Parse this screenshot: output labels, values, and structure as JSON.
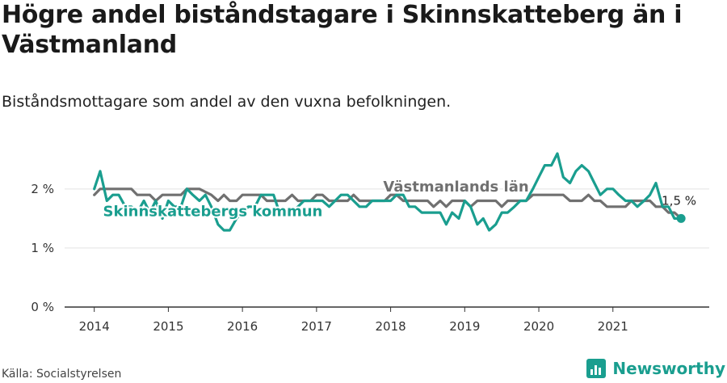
{
  "title": "Högre andel biståndstagare i Skinnskatteberg än i Västmanland",
  "subtitle": "Biståndsmottagare som andel av den vuxna befolkningen.",
  "source": "Källa: Socialstyrelsen",
  "brand": {
    "name": "Newsworthy",
    "icon": "newsworthy-logo-icon",
    "color": "#1a9e8f"
  },
  "chart_data": {
    "type": "line",
    "x_tick_labels": [
      "2014",
      "2015",
      "2016",
      "2017",
      "2018",
      "2019",
      "2020",
      "2021"
    ],
    "y_ticks": [
      0,
      1,
      2
    ],
    "y_tick_labels": [
      "0 %",
      "1 %",
      "2 %"
    ],
    "ylim": [
      0,
      2.6
    ],
    "xlim": [
      2013.6,
      2022.3
    ],
    "grid": "horizontal",
    "end_label": "1,5 %",
    "series": [
      {
        "name": "Västmanlands län",
        "color": "#707070",
        "values": [
          [
            2014.0,
            1.9
          ],
          [
            2014.08,
            2.0
          ],
          [
            2014.5,
            2.0
          ],
          [
            2014.58,
            1.9
          ],
          [
            2014.75,
            1.9
          ],
          [
            2014.83,
            1.8
          ],
          [
            2014.92,
            1.9
          ],
          [
            2015.17,
            1.9
          ],
          [
            2015.25,
            2.0
          ],
          [
            2015.42,
            2.0
          ],
          [
            2015.58,
            1.9
          ],
          [
            2015.67,
            1.8
          ],
          [
            2015.75,
            1.9
          ],
          [
            2015.83,
            1.8
          ],
          [
            2015.92,
            1.8
          ],
          [
            2016.0,
            1.9
          ],
          [
            2016.25,
            1.9
          ],
          [
            2016.33,
            1.8
          ],
          [
            2016.58,
            1.8
          ],
          [
            2016.67,
            1.9
          ],
          [
            2016.75,
            1.8
          ],
          [
            2016.92,
            1.8
          ],
          [
            2017.0,
            1.9
          ],
          [
            2017.08,
            1.9
          ],
          [
            2017.17,
            1.8
          ],
          [
            2017.42,
            1.8
          ],
          [
            2017.5,
            1.9
          ],
          [
            2017.58,
            1.8
          ],
          [
            2017.92,
            1.8
          ],
          [
            2018.0,
            1.9
          ],
          [
            2018.08,
            1.9
          ],
          [
            2018.17,
            1.8
          ],
          [
            2018.5,
            1.8
          ],
          [
            2018.58,
            1.7
          ],
          [
            2018.67,
            1.8
          ],
          [
            2018.75,
            1.7
          ],
          [
            2018.83,
            1.8
          ],
          [
            2019.0,
            1.8
          ],
          [
            2019.08,
            1.7
          ],
          [
            2019.17,
            1.8
          ],
          [
            2019.42,
            1.8
          ],
          [
            2019.5,
            1.7
          ],
          [
            2019.58,
            1.8
          ],
          [
            2019.83,
            1.8
          ],
          [
            2019.92,
            1.9
          ],
          [
            2020.33,
            1.9
          ],
          [
            2020.42,
            1.8
          ],
          [
            2020.58,
            1.8
          ],
          [
            2020.67,
            1.9
          ],
          [
            2020.75,
            1.8
          ],
          [
            2020.83,
            1.8
          ],
          [
            2020.92,
            1.7
          ],
          [
            2021.17,
            1.7
          ],
          [
            2021.25,
            1.8
          ],
          [
            2021.5,
            1.8
          ],
          [
            2021.58,
            1.7
          ],
          [
            2021.67,
            1.7
          ],
          [
            2021.75,
            1.6
          ],
          [
            2021.83,
            1.6
          ],
          [
            2021.92,
            1.5
          ]
        ]
      },
      {
        "name": "Skinnskattebergs kommun",
        "color": "#1a9e8f",
        "values": [
          [
            2014.0,
            2.0
          ],
          [
            2014.08,
            2.3
          ],
          [
            2014.17,
            1.8
          ],
          [
            2014.25,
            1.9
          ],
          [
            2014.33,
            1.9
          ],
          [
            2014.42,
            1.7
          ],
          [
            2014.5,
            1.7
          ],
          [
            2014.58,
            1.6
          ],
          [
            2014.67,
            1.8
          ],
          [
            2014.75,
            1.6
          ],
          [
            2014.83,
            1.8
          ],
          [
            2014.92,
            1.5
          ],
          [
            2015.0,
            1.8
          ],
          [
            2015.08,
            1.7
          ],
          [
            2015.17,
            1.7
          ],
          [
            2015.25,
            2.0
          ],
          [
            2015.33,
            1.9
          ],
          [
            2015.42,
            1.8
          ],
          [
            2015.5,
            1.9
          ],
          [
            2015.58,
            1.7
          ],
          [
            2015.67,
            1.4
          ],
          [
            2015.75,
            1.3
          ],
          [
            2015.83,
            1.3
          ],
          [
            2015.92,
            1.5
          ],
          [
            2016.0,
            1.6
          ],
          [
            2016.08,
            1.7
          ],
          [
            2016.17,
            1.7
          ],
          [
            2016.25,
            1.9
          ],
          [
            2016.33,
            1.9
          ],
          [
            2016.42,
            1.9
          ],
          [
            2016.5,
            1.6
          ],
          [
            2016.58,
            1.6
          ],
          [
            2016.67,
            1.6
          ],
          [
            2016.75,
            1.7
          ],
          [
            2016.83,
            1.8
          ],
          [
            2016.92,
            1.8
          ],
          [
            2017.0,
            1.8
          ],
          [
            2017.08,
            1.8
          ],
          [
            2017.17,
            1.7
          ],
          [
            2017.25,
            1.8
          ],
          [
            2017.33,
            1.9
          ],
          [
            2017.42,
            1.9
          ],
          [
            2017.5,
            1.8
          ],
          [
            2017.58,
            1.7
          ],
          [
            2017.67,
            1.7
          ],
          [
            2017.75,
            1.8
          ],
          [
            2017.83,
            1.8
          ],
          [
            2017.92,
            1.8
          ],
          [
            2018.0,
            1.8
          ],
          [
            2018.08,
            1.9
          ],
          [
            2018.17,
            1.9
          ],
          [
            2018.25,
            1.7
          ],
          [
            2018.33,
            1.7
          ],
          [
            2018.42,
            1.6
          ],
          [
            2018.5,
            1.6
          ],
          [
            2018.58,
            1.6
          ],
          [
            2018.67,
            1.6
          ],
          [
            2018.75,
            1.4
          ],
          [
            2018.83,
            1.6
          ],
          [
            2018.92,
            1.5
          ],
          [
            2019.0,
            1.8
          ],
          [
            2019.08,
            1.7
          ],
          [
            2019.17,
            1.4
          ],
          [
            2019.25,
            1.5
          ],
          [
            2019.33,
            1.3
          ],
          [
            2019.42,
            1.4
          ],
          [
            2019.5,
            1.6
          ],
          [
            2019.58,
            1.6
          ],
          [
            2019.67,
            1.7
          ],
          [
            2019.75,
            1.8
          ],
          [
            2019.83,
            1.8
          ],
          [
            2019.92,
            2.0
          ],
          [
            2020.0,
            2.2
          ],
          [
            2020.08,
            2.4
          ],
          [
            2020.17,
            2.4
          ],
          [
            2020.25,
            2.6
          ],
          [
            2020.33,
            2.2
          ],
          [
            2020.42,
            2.1
          ],
          [
            2020.5,
            2.3
          ],
          [
            2020.58,
            2.4
          ],
          [
            2020.67,
            2.3
          ],
          [
            2020.75,
            2.1
          ],
          [
            2020.83,
            1.9
          ],
          [
            2020.92,
            2.0
          ],
          [
            2021.0,
            2.0
          ],
          [
            2021.08,
            1.9
          ],
          [
            2021.17,
            1.8
          ],
          [
            2021.25,
            1.8
          ],
          [
            2021.33,
            1.7
          ],
          [
            2021.42,
            1.8
          ],
          [
            2021.5,
            1.9
          ],
          [
            2021.58,
            2.1
          ],
          [
            2021.67,
            1.7
          ],
          [
            2021.75,
            1.7
          ],
          [
            2021.83,
            1.5
          ],
          [
            2021.92,
            1.5
          ]
        ]
      }
    ]
  }
}
